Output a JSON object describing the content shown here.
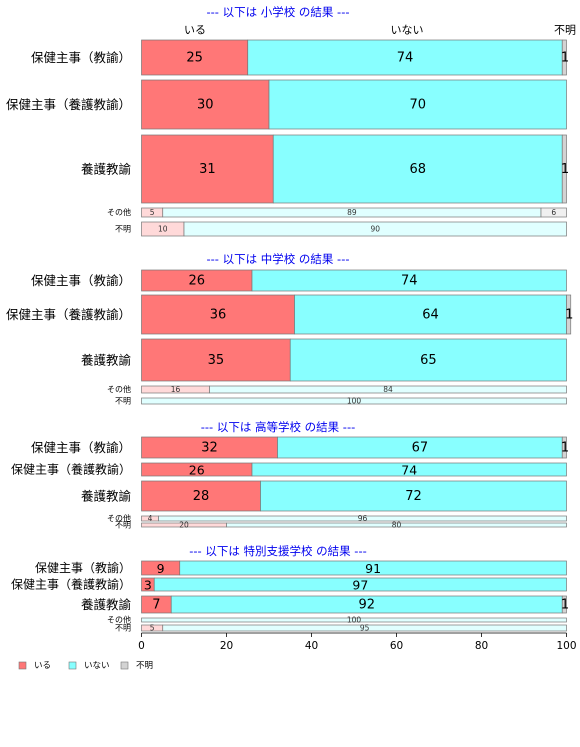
{
  "chart_data": {
    "type": "bar",
    "orientation": "horizontal",
    "stacked": true,
    "xlim": [
      0,
      100
    ],
    "x_ticks": [
      "0",
      "20",
      "40",
      "60",
      "80",
      "100"
    ],
    "column_labels": [
      "いる",
      "いない",
      "不明"
    ],
    "legend": {
      "placement": "bottom-left",
      "entries": [
        "いる",
        "いない",
        "不明"
      ]
    },
    "colors": {
      "iru": "#ff7777",
      "inai": "#88ffff",
      "fumei": "#d3d3d3",
      "iru_light": "#ffd9d9",
      "inai_light": "#e0ffff",
      "fumei_light": "#f0f0f0",
      "heading": "#0000ee"
    },
    "groups": [
      {
        "heading": "--- 以下は 小学校 の結果 ---",
        "rows": [
          {
            "label": "保健主事（教諭）",
            "values": [
              25,
              74,
              1
            ]
          },
          {
            "label": "保健主事（養護教諭）",
            "values": [
              30,
              70,
              0
            ]
          },
          {
            "label": "養護教諭",
            "values": [
              31,
              68,
              1
            ]
          },
          {
            "label": "その他",
            "values": [
              5,
              89,
              6
            ]
          },
          {
            "label": "不明",
            "values": [
              10,
              90,
              0
            ]
          }
        ]
      },
      {
        "heading": "--- 以下は 中学校 の結果 ---",
        "rows": [
          {
            "label": "保健主事（教諭）",
            "values": [
              26,
              74,
              0
            ]
          },
          {
            "label": "保健主事（養護教諭）",
            "values": [
              36,
              64,
              1
            ]
          },
          {
            "label": "養護教諭",
            "values": [
              35,
              65,
              0
            ]
          },
          {
            "label": "その他",
            "values": [
              16,
              84,
              0
            ]
          },
          {
            "label": "不明",
            "values": [
              0,
              100,
              0
            ]
          }
        ]
      },
      {
        "heading": "--- 以下は 高等学校 の結果 ---",
        "rows": [
          {
            "label": "保健主事（教諭）",
            "values": [
              32,
              67,
              1
            ]
          },
          {
            "label": "保健主事（養護教諭）",
            "values": [
              26,
              74,
              0
            ]
          },
          {
            "label": "養護教諭",
            "values": [
              28,
              72,
              0
            ]
          },
          {
            "label": "その他",
            "values": [
              4,
              96,
              0
            ]
          },
          {
            "label": "不明",
            "values": [
              20,
              80,
              0
            ]
          }
        ]
      },
      {
        "heading": "--- 以下は 特別支援学校 の結果 ---",
        "rows": [
          {
            "label": "保健主事（教諭）",
            "values": [
              9,
              91,
              0
            ]
          },
          {
            "label": "保健主事（養護教諭）",
            "values": [
              3,
              97,
              0
            ]
          },
          {
            "label": "養護教諭",
            "values": [
              7,
              92,
              1
            ]
          },
          {
            "label": "その他",
            "values": [
              0,
              100,
              0
            ]
          },
          {
            "label": "不明",
            "values": [
              5,
              95,
              0
            ]
          }
        ]
      }
    ]
  }
}
